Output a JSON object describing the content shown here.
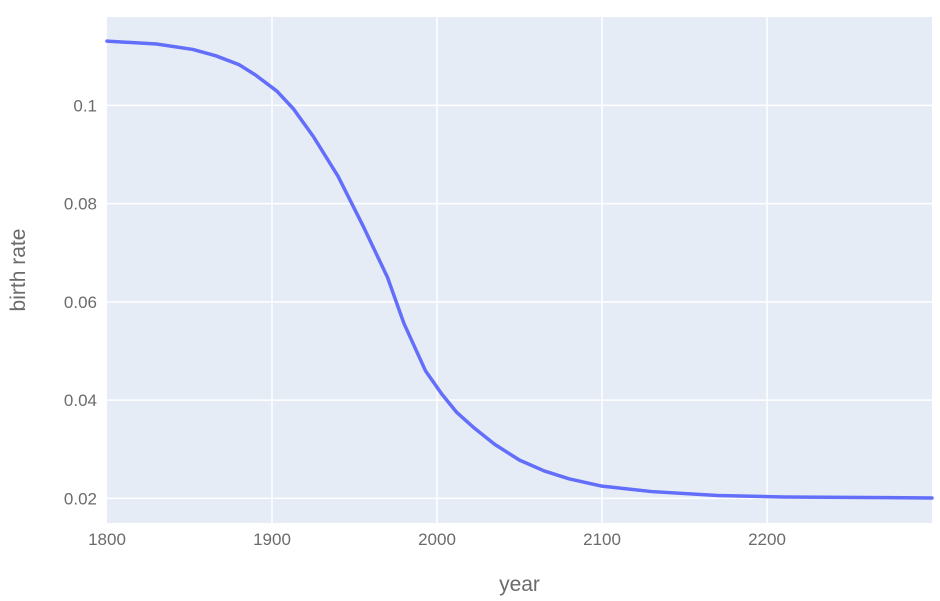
{
  "chart_data": {
    "type": "line",
    "title": "",
    "xlabel": "year",
    "ylabel": "birth rate",
    "xlim": [
      1800,
      2300
    ],
    "ylim": [
      0.015,
      0.118
    ],
    "x_ticks": [
      1800,
      1900,
      2000,
      2100,
      2200
    ],
    "y_ticks": [
      0.02,
      0.04,
      0.06,
      0.08,
      0.1
    ],
    "x_tick_labels": [
      "1800",
      "1900",
      "2000",
      "2100",
      "2200"
    ],
    "y_tick_labels": [
      "0.02",
      "0.04",
      "0.06",
      "0.08",
      "0.1"
    ],
    "grid": true,
    "legend": "none",
    "colors": {
      "plot_bg": "#e5ecf6",
      "grid": "#ffffff",
      "line": "#636efa",
      "text": "#6b6b6b"
    },
    "series": [
      {
        "x": [
          1800,
          1830,
          1852,
          1866,
          1880,
          1890,
          1903,
          1913,
          1925,
          1940,
          1955,
          1970,
          1980,
          1993,
          2003,
          2012,
          2022,
          2035,
          2050,
          2065,
          2080,
          2100,
          2130,
          2170,
          2210,
          2260,
          2300
        ],
        "y": [
          0.1131,
          0.1125,
          0.1114,
          0.1101,
          0.1083,
          0.1062,
          0.1029,
          0.0993,
          0.0937,
          0.0856,
          0.0756,
          0.065,
          0.0556,
          0.046,
          0.0412,
          0.0375,
          0.0345,
          0.031,
          0.0278,
          0.0256,
          0.024,
          0.0225,
          0.0214,
          0.0206,
          0.0203,
          0.0202,
          0.0201
        ]
      }
    ]
  }
}
